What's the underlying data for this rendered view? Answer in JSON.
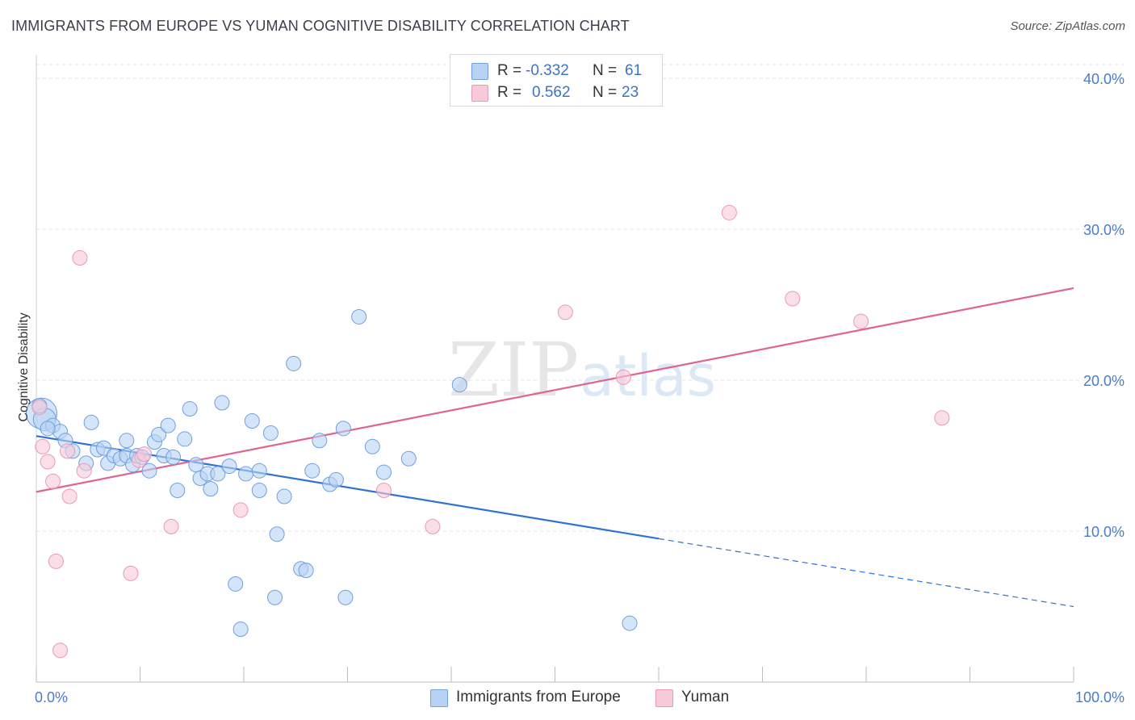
{
  "header": {
    "title": "IMMIGRANTS FROM EUROPE VS YUMAN COGNITIVE DISABILITY CORRELATION CHART",
    "source": "Source: ZipAtlas.com"
  },
  "watermark": {
    "zip": "ZIP",
    "atlas": "atlas"
  },
  "stats_legend": {
    "r_label": "R =",
    "n_label": "N =",
    "rows": [
      {
        "series": "Immigrants from Europe",
        "r": "-0.332",
        "n": "61"
      },
      {
        "series": "Yuman",
        "r": "0.562",
        "n": "23"
      }
    ]
  },
  "colors": {
    "europe_fill": "#b9d3f5",
    "europe_stroke": "#6f9fe0",
    "europe_line": "#2f72d4",
    "yuman_fill": "#f8c9d8",
    "yuman_stroke": "#e99ab4",
    "yuman_line": "#e0648f",
    "tick_text": "#4a7cc9",
    "grid": "#e3e3e3"
  },
  "chart_data": {
    "type": "scatter",
    "title": "IMMIGRANTS FROM EUROPE VS YUMAN COGNITIVE DISABILITY CORRELATION CHART",
    "xlabel": "",
    "ylabel": "Cognitive Disability",
    "xlim": [
      0,
      100
    ],
    "ylim": [
      0,
      40
    ],
    "x_tick_labels": [
      "0.0%",
      "100.0%"
    ],
    "y_ticks": [
      10,
      20,
      30,
      40
    ],
    "y_tick_labels": [
      "10.0%",
      "20.0%",
      "30.0%",
      "40.0%"
    ],
    "grid": true,
    "legend": [
      "Immigrants from Europe",
      "Yuman"
    ],
    "series": [
      {
        "name": "Immigrants from Europe",
        "r": -0.332,
        "n": 61,
        "points": [
          {
            "x": 0.5,
            "y": 17.8,
            "s": 3
          },
          {
            "x": 0.8,
            "y": 17.4,
            "s": 2
          },
          {
            "x": 1.6,
            "y": 17.0,
            "s": 1
          },
          {
            "x": 2.3,
            "y": 16.6,
            "s": 1
          },
          {
            "x": 2.8,
            "y": 16.0,
            "s": 1
          },
          {
            "x": 3.5,
            "y": 15.3,
            "s": 1
          },
          {
            "x": 4.8,
            "y": 14.5,
            "s": 1
          },
          {
            "x": 5.3,
            "y": 17.2,
            "s": 1
          },
          {
            "x": 5.9,
            "y": 15.4,
            "s": 1
          },
          {
            "x": 6.5,
            "y": 15.5,
            "s": 1
          },
          {
            "x": 6.9,
            "y": 14.5,
            "s": 1
          },
          {
            "x": 7.5,
            "y": 15.0,
            "s": 1
          },
          {
            "x": 8.1,
            "y": 14.8,
            "s": 1
          },
          {
            "x": 8.7,
            "y": 15.0,
            "s": 1
          },
          {
            "x": 8.7,
            "y": 16.0,
            "s": 1
          },
          {
            "x": 9.3,
            "y": 14.4,
            "s": 1
          },
          {
            "x": 9.7,
            "y": 15.0,
            "s": 1
          },
          {
            "x": 10.2,
            "y": 14.9,
            "s": 1
          },
          {
            "x": 10.9,
            "y": 14.0,
            "s": 1
          },
          {
            "x": 11.4,
            "y": 15.9,
            "s": 1
          },
          {
            "x": 11.8,
            "y": 16.4,
            "s": 1
          },
          {
            "x": 12.3,
            "y": 15.0,
            "s": 1
          },
          {
            "x": 12.7,
            "y": 17.0,
            "s": 1
          },
          {
            "x": 13.2,
            "y": 14.9,
            "s": 1
          },
          {
            "x": 13.6,
            "y": 12.7,
            "s": 1
          },
          {
            "x": 14.3,
            "y": 16.1,
            "s": 1
          },
          {
            "x": 14.8,
            "y": 18.1,
            "s": 1
          },
          {
            "x": 15.4,
            "y": 14.4,
            "s": 1
          },
          {
            "x": 15.8,
            "y": 13.5,
            "s": 1
          },
          {
            "x": 16.5,
            "y": 13.8,
            "s": 1
          },
          {
            "x": 16.8,
            "y": 12.8,
            "s": 1
          },
          {
            "x": 17.5,
            "y": 13.8,
            "s": 1
          },
          {
            "x": 17.9,
            "y": 18.5,
            "s": 1
          },
          {
            "x": 18.6,
            "y": 14.3,
            "s": 1
          },
          {
            "x": 19.2,
            "y": 6.5,
            "s": 1
          },
          {
            "x": 19.7,
            "y": 3.5,
            "s": 1
          },
          {
            "x": 20.2,
            "y": 13.8,
            "s": 1
          },
          {
            "x": 20.8,
            "y": 17.3,
            "s": 1
          },
          {
            "x": 21.5,
            "y": 12.7,
            "s": 1
          },
          {
            "x": 21.5,
            "y": 14.0,
            "s": 1
          },
          {
            "x": 22.6,
            "y": 16.5,
            "s": 1
          },
          {
            "x": 23.0,
            "y": 5.6,
            "s": 1
          },
          {
            "x": 23.2,
            "y": 9.8,
            "s": 1
          },
          {
            "x": 23.9,
            "y": 12.3,
            "s": 1
          },
          {
            "x": 24.8,
            "y": 21.1,
            "s": 1
          },
          {
            "x": 25.5,
            "y": 7.5,
            "s": 1
          },
          {
            "x": 26.0,
            "y": 7.4,
            "s": 1
          },
          {
            "x": 26.6,
            "y": 14.0,
            "s": 1
          },
          {
            "x": 27.3,
            "y": 16.0,
            "s": 1
          },
          {
            "x": 28.3,
            "y": 13.1,
            "s": 1
          },
          {
            "x": 28.9,
            "y": 13.4,
            "s": 1
          },
          {
            "x": 29.6,
            "y": 16.8,
            "s": 1
          },
          {
            "x": 29.8,
            "y": 5.6,
            "s": 1
          },
          {
            "x": 31.1,
            "y": 24.2,
            "s": 1
          },
          {
            "x": 32.4,
            "y": 15.6,
            "s": 1
          },
          {
            "x": 33.5,
            "y": 13.9,
            "s": 1
          },
          {
            "x": 35.9,
            "y": 14.8,
            "s": 1
          },
          {
            "x": 40.8,
            "y": 19.7,
            "s": 1
          },
          {
            "x": 57.2,
            "y": 3.9,
            "s": 1
          },
          {
            "x": 0.3,
            "y": 18.3,
            "s": 1
          },
          {
            "x": 1.1,
            "y": 16.8,
            "s": 1
          }
        ],
        "trend": {
          "x0": 0,
          "y0": 16.3,
          "x1": 60,
          "y1": 9.5,
          "dash_x1": 100,
          "dash_y1": 5.0
        }
      },
      {
        "name": "Yuman",
        "r": 0.562,
        "n": 23,
        "points": [
          {
            "x": 0.3,
            "y": 18.2,
            "s": 1
          },
          {
            "x": 0.6,
            "y": 15.6,
            "s": 1
          },
          {
            "x": 1.1,
            "y": 14.6,
            "s": 1
          },
          {
            "x": 1.6,
            "y": 13.3,
            "s": 1
          },
          {
            "x": 1.9,
            "y": 8.0,
            "s": 1
          },
          {
            "x": 2.3,
            "y": 2.1,
            "s": 1
          },
          {
            "x": 3.0,
            "y": 15.3,
            "s": 1
          },
          {
            "x": 3.2,
            "y": 12.3,
            "s": 1
          },
          {
            "x": 4.2,
            "y": 28.1,
            "s": 1
          },
          {
            "x": 4.6,
            "y": 14.0,
            "s": 1
          },
          {
            "x": 9.1,
            "y": 7.2,
            "s": 1
          },
          {
            "x": 9.9,
            "y": 14.7,
            "s": 1
          },
          {
            "x": 10.4,
            "y": 15.1,
            "s": 1
          },
          {
            "x": 13.0,
            "y": 10.3,
            "s": 1
          },
          {
            "x": 19.7,
            "y": 11.4,
            "s": 1
          },
          {
            "x": 33.5,
            "y": 12.7,
            "s": 1
          },
          {
            "x": 38.2,
            "y": 10.3,
            "s": 1
          },
          {
            "x": 51.0,
            "y": 24.5,
            "s": 1
          },
          {
            "x": 56.6,
            "y": 20.2,
            "s": 1
          },
          {
            "x": 66.8,
            "y": 31.1,
            "s": 1
          },
          {
            "x": 72.9,
            "y": 25.4,
            "s": 1
          },
          {
            "x": 79.5,
            "y": 23.9,
            "s": 1
          },
          {
            "x": 87.3,
            "y": 17.5,
            "s": 1
          }
        ],
        "trend": {
          "x0": 0,
          "y0": 12.6,
          "x1": 100,
          "y1": 26.1
        }
      }
    ]
  }
}
